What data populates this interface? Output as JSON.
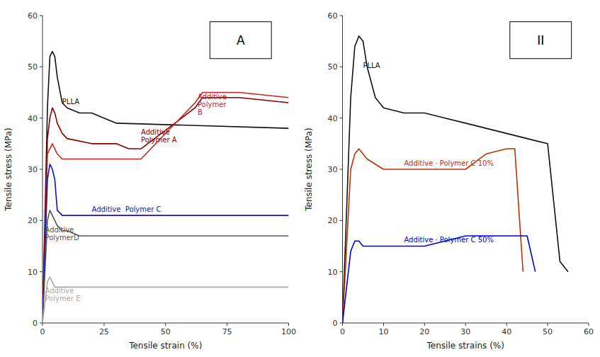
{
  "chart_data": [
    {
      "type": "line",
      "title": "A",
      "x_label": "Tensile strain (%)",
      "y_label": "Tensile stress (MPa)",
      "xlim": [
        0,
        100
      ],
      "ylim": [
        0,
        60
      ],
      "xticks": [
        0,
        25,
        50,
        75,
        100
      ],
      "yticks": [
        0,
        10,
        20,
        30,
        40,
        50,
        60
      ],
      "grid": false,
      "series": [
        {
          "color": "#111111",
          "x": [
            0,
            2,
            3,
            4,
            5,
            6,
            8,
            10,
            15,
            20,
            25,
            30,
            100
          ],
          "values": [
            0,
            42,
            52,
            53,
            52,
            48,
            43,
            42,
            41,
            41,
            40,
            39,
            38
          ]
        },
        {
          "color": "#800000",
          "x": [
            0,
            2,
            3,
            4,
            5,
            6,
            8,
            10,
            20,
            30,
            35,
            40,
            62,
            65,
            80,
            100
          ],
          "values": [
            0,
            36,
            40,
            42,
            41,
            39,
            37,
            36,
            35,
            35,
            34,
            34,
            42,
            44,
            44,
            43
          ]
        },
        {
          "color": "#cc2222",
          "x": [
            0,
            2,
            3,
            4,
            5,
            6,
            8,
            10,
            20,
            30,
            40,
            62,
            65,
            80,
            100
          ],
          "values": [
            0,
            33,
            34,
            35,
            34,
            33,
            32,
            32,
            32,
            32,
            32,
            43,
            45,
            45,
            44
          ]
        },
        {
          "color": "#1111cc",
          "x": [
            0,
            2,
            3,
            4,
            5,
            6,
            8,
            10,
            15,
            20,
            25,
            30,
            35,
            40,
            100
          ],
          "values": [
            0,
            28,
            31,
            30,
            28,
            22,
            21,
            21,
            21,
            21,
            21,
            21,
            21,
            21,
            21
          ]
        },
        {
          "color": "#555555",
          "x": [
            0,
            2,
            3,
            4,
            5,
            6,
            8,
            10,
            15,
            20,
            100
          ],
          "values": [
            0,
            20,
            22,
            21,
            20,
            19,
            18,
            18,
            17,
            17,
            17
          ]
        },
        {
          "color": "#aaaaaa",
          "x": [
            0,
            2,
            3,
            4,
            5,
            10,
            100
          ],
          "values": [
            0,
            8,
            9,
            8,
            7,
            7,
            7
          ]
        }
      ],
      "annotations": [
        {
          "text": "PLLA",
          "x": 8,
          "y": 44,
          "color": "#111111"
        },
        {
          "text": "Additive\nPolymer A",
          "x": 40,
          "y": 38,
          "color": "#800000"
        },
        {
          "text": "Additive\nPolymer\nB",
          "x": 63,
          "y": 45,
          "color": "#cc2222"
        },
        {
          "text": "Additive  Polymer C",
          "x": 20,
          "y": 23,
          "color": "#1111cc"
        },
        {
          "text": "Additive\nPolymerD",
          "x": 1,
          "y": 19,
          "color": "#555555"
        },
        {
          "text": "Additive\nPolymer E",
          "x": 1,
          "y": 7,
          "color": "#aaaaaa"
        }
      ]
    },
    {
      "type": "line",
      "title": "II",
      "x_label": "Tensile strains (%)",
      "y_label": "Tensile stress (MPa)",
      "xlim": [
        0,
        60
      ],
      "ylim": [
        0,
        60
      ],
      "xticks": [
        0,
        10,
        20,
        30,
        40,
        50,
        60
      ],
      "yticks": [
        0,
        10,
        20,
        30,
        40,
        50,
        60
      ],
      "grid": false,
      "series": [
        {
          "color": "#111111",
          "x": [
            0,
            2,
            3,
            4,
            5,
            6,
            8,
            10,
            15,
            20,
            25,
            30,
            35,
            40,
            45,
            50,
            53,
            55
          ],
          "values": [
            0,
            44,
            54,
            56,
            55,
            50,
            44,
            42,
            41,
            41,
            40,
            39,
            38,
            37,
            36,
            35,
            12,
            10
          ]
        },
        {
          "color": "#bb3300",
          "x": [
            0,
            2,
            3,
            4,
            5,
            6,
            8,
            10,
            15,
            20,
            25,
            30,
            35,
            40,
            42,
            44
          ],
          "values": [
            0,
            30,
            33,
            34,
            33,
            32,
            31,
            30,
            30,
            30,
            30,
            30,
            33,
            34,
            34,
            10
          ]
        },
        {
          "color": "#0000cc",
          "x": [
            0,
            2,
            3,
            4,
            5,
            6,
            8,
            10,
            15,
            20,
            25,
            30,
            35,
            40,
            45,
            47
          ],
          "values": [
            0,
            14,
            16,
            16,
            15,
            15,
            15,
            15,
            15,
            15,
            16,
            17,
            17,
            17,
            17,
            10
          ]
        }
      ],
      "annotations": [
        {
          "text": "PLLA",
          "x": 5,
          "y": 51,
          "color": "#111111"
        },
        {
          "text": "Additive · Polymer C 10%",
          "x": 15,
          "y": 32,
          "color": "#bb3300"
        },
        {
          "text": "Additive · Polymer C 50%",
          "x": 15,
          "y": 17,
          "color": "#0000cc"
        }
      ]
    }
  ]
}
